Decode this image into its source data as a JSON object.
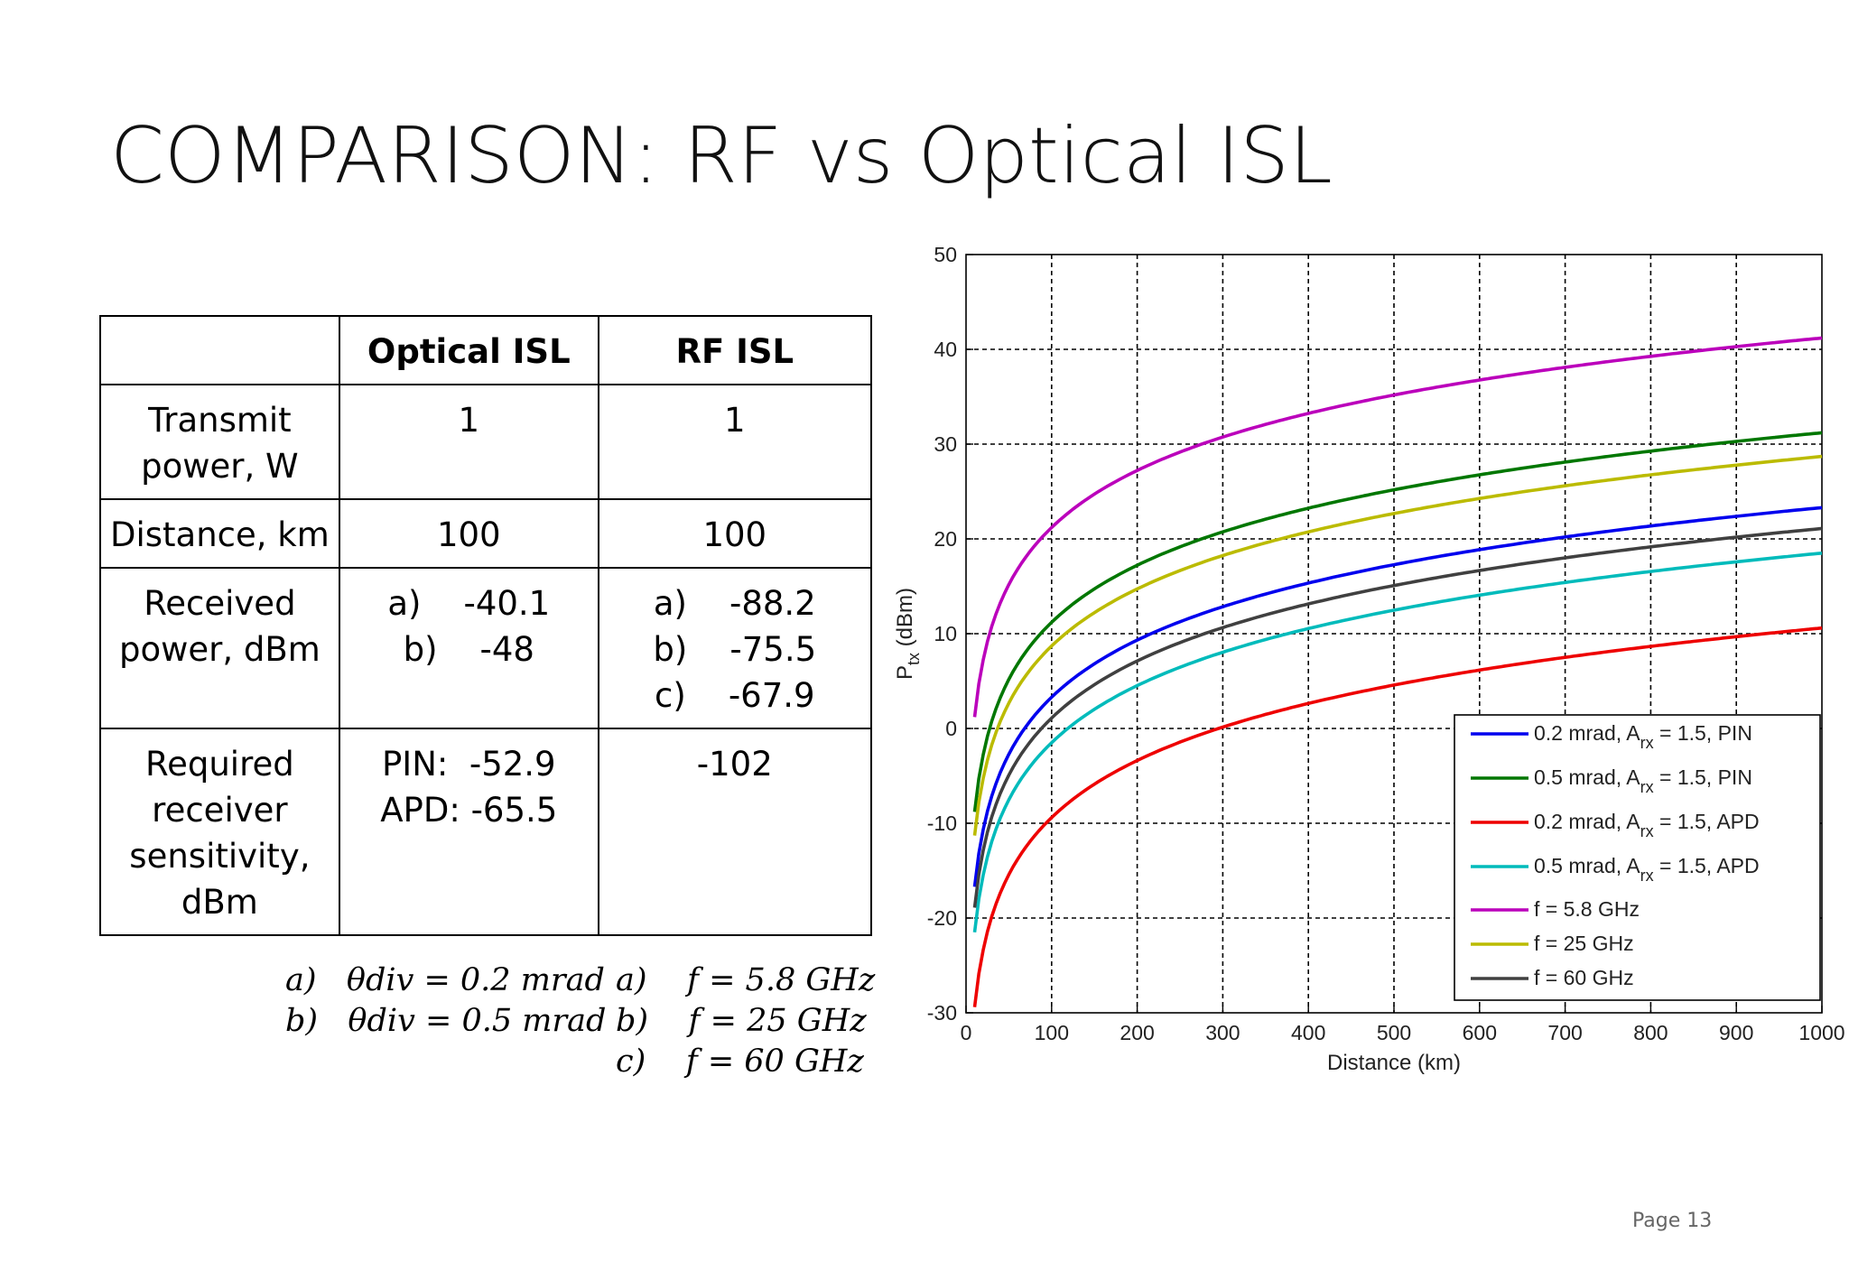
{
  "slide": {
    "title": "COMPARISON: RF vs Optical ISL",
    "page_label": "Page 13"
  },
  "table": {
    "headers": [
      "",
      "Optical ISL",
      "RF ISL"
    ],
    "rows": [
      {
        "label": [
          "Transmit",
          "power, W"
        ],
        "optical": [
          "1"
        ],
        "rf": [
          "1"
        ]
      },
      {
        "label": [
          "Distance, km"
        ],
        "optical": [
          "100"
        ],
        "rf": [
          "100"
        ]
      },
      {
        "label": [
          "Received",
          "power, dBm"
        ],
        "optical": [
          "a)    -40.1",
          "b)    -48"
        ],
        "rf": [
          "a)    -88.2",
          "b)    -75.5",
          "c)    -67.9"
        ]
      },
      {
        "label": [
          "Required",
          "receiver",
          "sensitivity,",
          "dBm"
        ],
        "optical": [
          "PIN:  -52.9",
          "APD: -65.5"
        ],
        "rf": [
          "-102"
        ]
      }
    ]
  },
  "footnotes": {
    "left": [
      "a)   θdiv = 0.2 mrad",
      "b)   θdiv = 0.5 mrad"
    ],
    "right": [
      "a)    f = 5.8 GHz",
      "b)    f = 25 GHz",
      "c)    f = 60 GHz"
    ]
  },
  "chart_data": {
    "type": "line",
    "xlabel": "Distance (km)",
    "ylabel": "P_tx (dBm)",
    "xlim": [
      0,
      1000
    ],
    "ylim": [
      -30,
      50
    ],
    "xticks": [
      0,
      100,
      200,
      300,
      400,
      500,
      600,
      700,
      800,
      900,
      1000
    ],
    "yticks": [
      -30,
      -20,
      -10,
      0,
      10,
      20,
      30,
      40,
      50
    ],
    "grid": true,
    "legend_position": "bottom-right",
    "series": [
      {
        "name": "0.2 mrad, Arx = 1.5, PIN",
        "name_parts": [
          "0.2 mrad, A",
          "rx",
          " = 1.5, PIN"
        ],
        "color": "#0000ee",
        "ref_x": 100,
        "ref_y": 3.3
      },
      {
        "name": "0.5 mrad, Arx = 1.5, PIN",
        "name_parts": [
          "0.5 mrad, A",
          "rx",
          " = 1.5, PIN"
        ],
        "color": "#007700",
        "ref_x": 100,
        "ref_y": 11.2
      },
      {
        "name": "0.2 mrad, Arx = 1.5, APD",
        "name_parts": [
          "0.2 mrad, A",
          "rx",
          " = 1.5, APD"
        ],
        "color": "#ee0000",
        "ref_x": 100,
        "ref_y": -9.4
      },
      {
        "name": "0.5 mrad, Arx = 1.5, APD",
        "name_parts": [
          "0.5 mrad, A",
          "rx",
          " = 1.5, APD"
        ],
        "color": "#00bbbb",
        "ref_x": 100,
        "ref_y": -1.5
      },
      {
        "name": "f = 5.8 GHz",
        "name_parts": [
          "f = 5.8 GHz"
        ],
        "color": "#bb00bb",
        "ref_x": 100,
        "ref_y": 21.2
      },
      {
        "name": "f = 25 GHz",
        "name_parts": [
          "f = 25 GHz"
        ],
        "color": "#bbbb00",
        "ref_x": 100,
        "ref_y": 8.7
      },
      {
        "name": "f = 60 GHz",
        "name_parts": [
          "f = 60 GHz"
        ],
        "color": "#404040",
        "ref_x": 100,
        "ref_y": 1.1
      }
    ]
  }
}
